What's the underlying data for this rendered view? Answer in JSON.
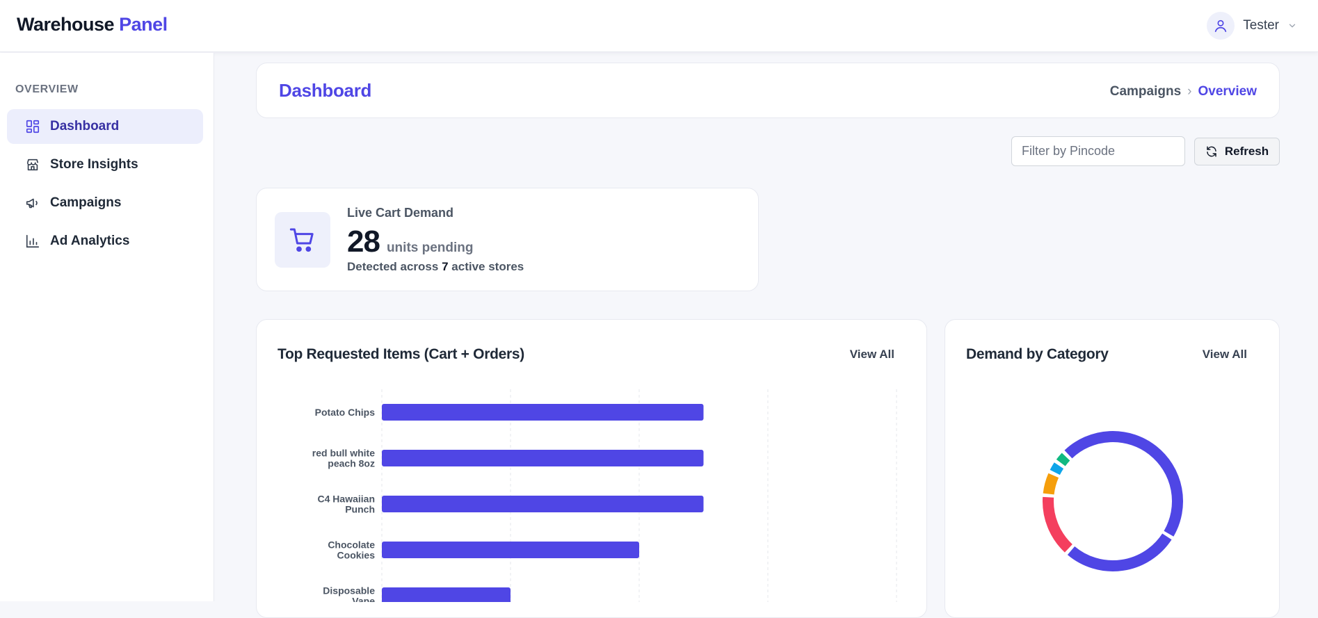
{
  "brand": {
    "part1": "Warehouse",
    "part2": "Panel"
  },
  "user": {
    "name": "Tester"
  },
  "sidebar": {
    "heading": "OVERVIEW",
    "items": [
      {
        "label": "Dashboard",
        "icon": "dashboard-icon",
        "active": true
      },
      {
        "label": "Store Insights",
        "icon": "store-icon",
        "active": false
      },
      {
        "label": "Campaigns",
        "icon": "megaphone-icon",
        "active": false
      },
      {
        "label": "Ad Analytics",
        "icon": "bar-chart-icon",
        "active": false
      }
    ]
  },
  "header": {
    "title": "Dashboard",
    "breadcrumb": {
      "parent": "Campaigns",
      "separator": "›",
      "current": "Overview"
    }
  },
  "filters": {
    "pincode_placeholder": "Filter by Pincode",
    "pincode_value": "",
    "refresh_label": "Refresh"
  },
  "stat": {
    "label": "Live Cart Demand",
    "value": "28",
    "unit": "units pending",
    "sub_prefix": "Detected across",
    "sub_count": "7",
    "sub_suffix": "active stores"
  },
  "top_items": {
    "title": "Top Requested Items (Cart + Orders)",
    "view_all": "View All"
  },
  "category": {
    "title": "Demand by Category",
    "view_all": "View All"
  },
  "colors": {
    "accent": "#4f46e5",
    "bar": "#4f46e5",
    "pink": "#f43f5e",
    "amber": "#f59e0b",
    "sky": "#0ea5e9",
    "green": "#10b981"
  },
  "chart_data": [
    {
      "type": "bar",
      "orientation": "horizontal",
      "categories": [
        [
          "Potato Chips"
        ],
        [
          "red bull white",
          "peach 8oz"
        ],
        [
          "C4 Hawaiian",
          "Punch"
        ],
        [
          "Chocolate",
          "Cookies"
        ],
        [
          "Disposable",
          "Vape"
        ]
      ],
      "values": [
        5,
        5,
        5,
        4,
        2
      ],
      "xlim": [
        0,
        8
      ],
      "grid": true
    },
    {
      "type": "pie",
      "donut": true,
      "slices": [
        {
          "value": 25,
          "color": "#4f46e5"
        },
        {
          "value": 15,
          "color": "#4f46e5"
        },
        {
          "value": 8,
          "color": "#f43f5e"
        },
        {
          "value": 3,
          "color": "#f59e0b"
        },
        {
          "value": 1.5,
          "color": "#0ea5e9"
        },
        {
          "value": 1.5,
          "color": "#10b981"
        }
      ]
    }
  ]
}
